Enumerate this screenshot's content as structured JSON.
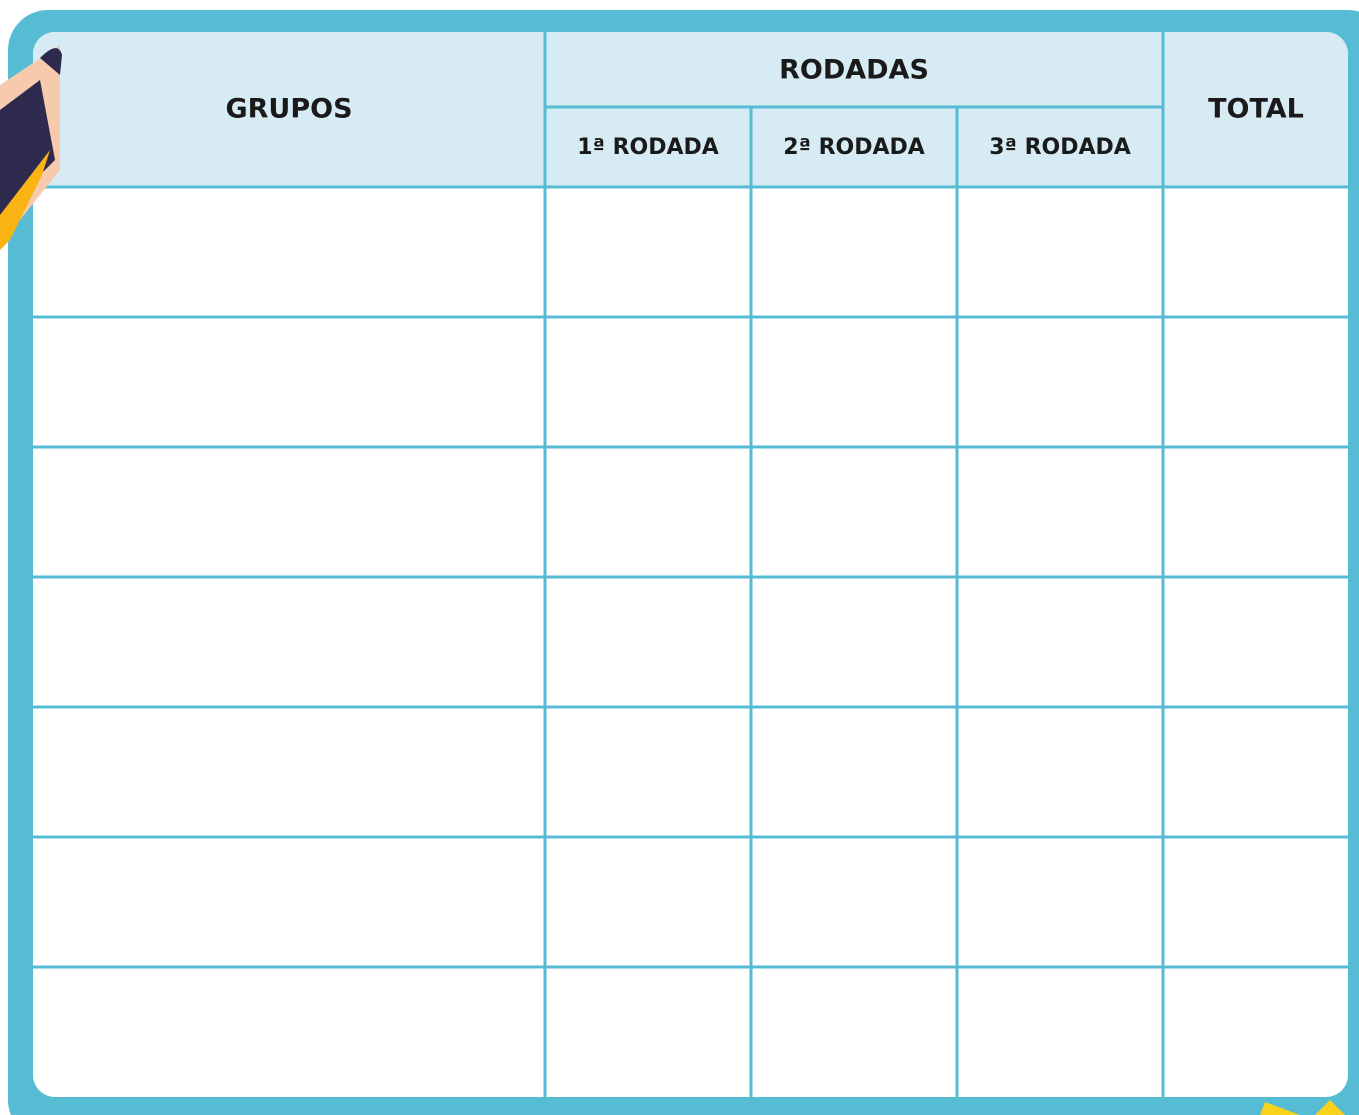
{
  "table": {
    "header": {
      "groups": "GRUPOS",
      "rounds": "RODADAS",
      "round_columns": [
        "1ª RODADA",
        "2ª RODADA",
        "3ª RODADA"
      ],
      "total": "TOTAL"
    }
  }
}
